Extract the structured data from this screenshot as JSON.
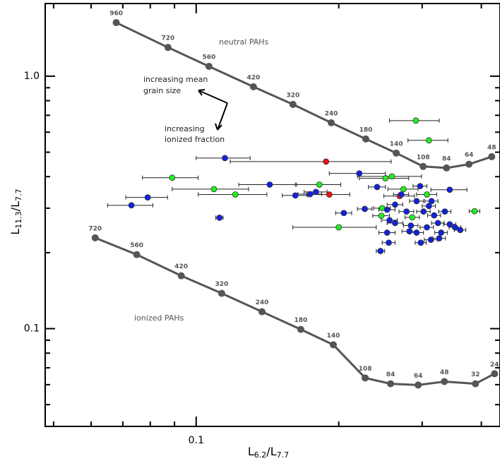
{
  "chart_data": {
    "type": "scatter",
    "log_x": true,
    "log_y": true,
    "xlabel": [
      "L",
      "6.2",
      "/L",
      "7.7"
    ],
    "ylabel": [
      "L",
      "11.3",
      "/L",
      "7.7"
    ],
    "xlim": [
      0.048,
      0.438
    ],
    "ylim": [
      0.041,
      1.94
    ],
    "xticks": [
      0.1
    ],
    "yticks": [
      0.1,
      {
        "value": 1,
        "label": "1.0"
      }
    ],
    "xminorticks": [
      0.05,
      0.06,
      0.07,
      0.08,
      0.09,
      0.2,
      0.3,
      0.4
    ],
    "yminorticks": [
      0.05,
      0.06,
      0.07,
      0.08,
      0.09,
      0.2,
      0.3,
      0.4,
      0.5,
      0.6,
      0.7,
      0.8,
      0.9
    ],
    "models": [
      {
        "name": "neutral PAHs",
        "color": "#555555",
        "x": [
          0.0678,
          0.0872,
          0.1064,
          0.1321,
          0.1601,
          0.1928,
          0.2281,
          0.2645,
          0.3015,
          0.3377,
          0.3767,
          0.4207
        ],
        "y": [
          1.63,
          1.3,
          1.094,
          0.908,
          0.773,
          0.654,
          0.564,
          0.496,
          0.439,
          0.433,
          0.448,
          0.48
        ],
        "sizes": [
          960,
          720,
          560,
          420,
          320,
          240,
          180,
          140,
          108,
          84,
          64,
          48
        ]
      },
      {
        "name": "ionized PAHs",
        "color": "#555555",
        "x": [
          0.0612,
          0.0749,
          0.093,
          0.1132,
          0.1377,
          0.1663,
          0.1948,
          0.2274,
          0.2573,
          0.2943,
          0.3342,
          0.3887,
          0.4266
        ],
        "y": [
          0.229,
          0.1965,
          0.162,
          0.138,
          0.1167,
          0.0993,
          0.0863,
          0.0638,
          0.0605,
          0.0598,
          0.0617,
          0.0605,
          0.0663
        ],
        "sizes": [
          720,
          560,
          420,
          320,
          240,
          180,
          140,
          108,
          84,
          64,
          48,
          32,
          24
        ]
      }
    ],
    "points": [
      {
        "color": "#22ee22",
        "x": [
          0.291,
          0.31,
          0.089,
          0.109,
          0.121,
          0.182,
          0.259,
          0.251,
          0.274,
          0.247,
          0.246,
          0.286,
          0.307,
          0.387,
          0.2
        ],
        "y": [
          0.667,
          0.557,
          0.396,
          0.357,
          0.34,
          0.372,
          0.401,
          0.394,
          0.357,
          0.3,
          0.28,
          0.276,
          0.34,
          0.292,
          0.252
        ],
        "xerr": [
          0.035,
          0.03,
          0.012,
          0.02,
          0.02,
          0.02,
          0.04,
          0.03,
          0.02,
          0.01,
          0.01,
          0.01,
          0.015,
          0.01,
          0.04
        ]
      },
      {
        "color": "#ee1111",
        "x": [
          0.188,
          0.191,
          0.269
        ],
        "y": [
          0.459,
          0.34,
          0.335
        ],
        "xerr": [
          0.07,
          0.02,
          0.02
        ]
      },
      {
        "color": "#1122dd",
        "x": [
          0.073,
          0.079,
          0.115,
          0.112,
          0.143,
          0.162,
          0.174,
          0.179,
          0.221,
          0.241,
          0.205,
          0.227,
          0.253,
          0.263,
          0.271,
          0.256,
          0.278,
          0.284,
          0.292,
          0.297,
          0.302,
          0.31,
          0.318,
          0.324,
          0.329,
          0.313,
          0.298,
          0.282,
          0.263,
          0.253,
          0.255,
          0.245,
          0.343,
          0.335,
          0.343,
          0.352,
          0.361,
          0.326,
          0.307,
          0.292,
          0.314
        ],
        "y": [
          0.308,
          0.331,
          0.474,
          0.275,
          0.372,
          0.337,
          0.341,
          0.348,
          0.412,
          0.364,
          0.287,
          0.298,
          0.296,
          0.31,
          0.34,
          0.269,
          0.291,
          0.256,
          0.24,
          0.367,
          0.291,
          0.306,
          0.281,
          0.262,
          0.24,
          0.225,
          0.219,
          0.243,
          0.262,
          0.24,
          0.219,
          0.203,
          0.355,
          0.291,
          0.259,
          0.252,
          0.246,
          0.228,
          0.252,
          0.32,
          0.32
        ],
        "xerr": [
          0.008,
          0.008,
          0.015,
          0.002,
          0.02,
          0.01,
          0.01,
          0.01,
          0.03,
          0.01,
          0.008,
          0.008,
          0.01,
          0.01,
          0.01,
          0.01,
          0.01,
          0.01,
          0.01,
          0.01,
          0.01,
          0.01,
          0.01,
          0.01,
          0.01,
          0.01,
          0.008,
          0.01,
          0.01,
          0.01,
          0.008,
          0.005,
          0.03,
          0.01,
          0.01,
          0.01,
          0.01,
          0.01,
          0.01,
          0.01,
          0.01
        ]
      }
    ],
    "annotations": [
      {
        "lines": [
          "increasing mean",
          "grain size"
        ]
      },
      {
        "lines": [
          "increasing",
          "ionized fraction"
        ]
      }
    ]
  }
}
